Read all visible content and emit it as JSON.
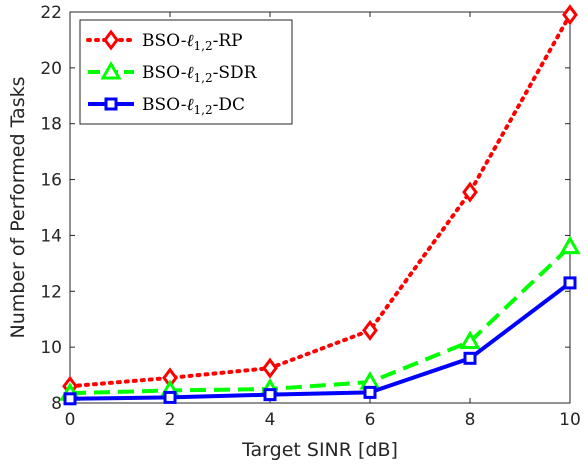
{
  "chart_data": {
    "type": "line",
    "xlabel": "Target SINR [dB]",
    "ylabel": "Number of Performed Tasks",
    "xlim": [
      0,
      10
    ],
    "ylim": [
      8,
      22
    ],
    "xticks": [
      0,
      2,
      4,
      6,
      8,
      10
    ],
    "yticks": [
      8,
      10,
      12,
      14,
      16,
      18,
      20,
      22
    ],
    "grid": false,
    "legend_position": "top-left",
    "x": [
      0,
      2,
      4,
      6,
      8,
      10
    ],
    "series": [
      {
        "name": "BSO-ℓ1,2-RP",
        "label_base": "BSO-",
        "label_ell": "ℓ",
        "label_sub": "1,2",
        "label_suffix": "-RP",
        "values": [
          8.6,
          8.9,
          9.25,
          10.6,
          15.55,
          21.9
        ],
        "color": "#ff0000",
        "marker": "diamond",
        "linestyle": "dotted"
      },
      {
        "name": "BSO-ℓ1,2-SDR",
        "label_base": "BSO-",
        "label_ell": "ℓ",
        "label_sub": "1,2",
        "label_suffix": "-SDR",
        "values": [
          8.35,
          8.45,
          8.5,
          8.75,
          10.2,
          13.6
        ],
        "color": "#00ff00",
        "marker": "triangle",
        "linestyle": "dashed"
      },
      {
        "name": "BSO-ℓ1,2-DC",
        "label_base": "BSO-",
        "label_ell": "ℓ",
        "label_sub": "1,2",
        "label_suffix": "-DC",
        "values": [
          8.15,
          8.2,
          8.3,
          8.38,
          9.6,
          12.3
        ],
        "color": "#0000ff",
        "marker": "square",
        "linestyle": "solid"
      }
    ]
  }
}
